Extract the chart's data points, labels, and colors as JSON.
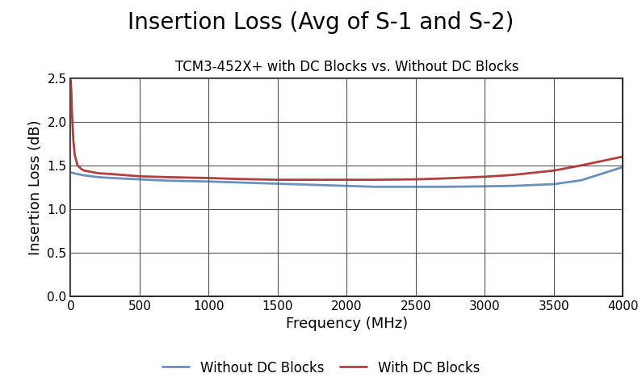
{
  "title": "Insertion Loss (Avg of S-1 and S-2)",
  "subtitle": "TCM3-452X+ with DC Blocks vs. Without DC Blocks",
  "xlabel": "Frequency (MHz)",
  "ylabel": "Insertion Loss (dB)",
  "xlim": [
    0,
    4000
  ],
  "ylim": [
    0.0,
    2.5
  ],
  "xticks": [
    0,
    500,
    1000,
    1500,
    2000,
    2500,
    3000,
    3500,
    4000
  ],
  "yticks": [
    0.0,
    0.5,
    1.0,
    1.5,
    2.0,
    2.5
  ],
  "without_dc_blocks": {
    "freq": [
      0,
      50,
      100,
      200,
      300,
      500,
      700,
      1000,
      1200,
      1500,
      1800,
      2000,
      2200,
      2500,
      2700,
      3000,
      3200,
      3500,
      3700,
      4000
    ],
    "loss": [
      1.42,
      1.4,
      1.385,
      1.365,
      1.355,
      1.34,
      1.325,
      1.315,
      1.305,
      1.29,
      1.275,
      1.265,
      1.255,
      1.255,
      1.255,
      1.26,
      1.265,
      1.285,
      1.33,
      1.48
    ],
    "color": "#6B8FBF",
    "label": "Without DC Blocks",
    "linewidth": 2.0
  },
  "with_dc_blocks": {
    "freq": [
      0,
      5,
      10,
      20,
      30,
      50,
      80,
      100,
      200,
      300,
      500,
      700,
      1000,
      1200,
      1500,
      1800,
      2000,
      2200,
      2500,
      2700,
      3000,
      3200,
      3500,
      3700,
      4000
    ],
    "loss": [
      2.48,
      2.35,
      2.1,
      1.78,
      1.62,
      1.5,
      1.455,
      1.44,
      1.41,
      1.4,
      1.375,
      1.365,
      1.355,
      1.345,
      1.335,
      1.335,
      1.335,
      1.335,
      1.34,
      1.35,
      1.37,
      1.39,
      1.44,
      1.5,
      1.6
    ],
    "color": "#B04040",
    "label": "With DC Blocks",
    "linewidth": 2.0
  },
  "background_color": "#ffffff",
  "grid_color": "#404040",
  "title_fontsize": 20,
  "subtitle_fontsize": 12,
  "axis_label_fontsize": 13,
  "tick_fontsize": 11,
  "legend_fontsize": 12
}
